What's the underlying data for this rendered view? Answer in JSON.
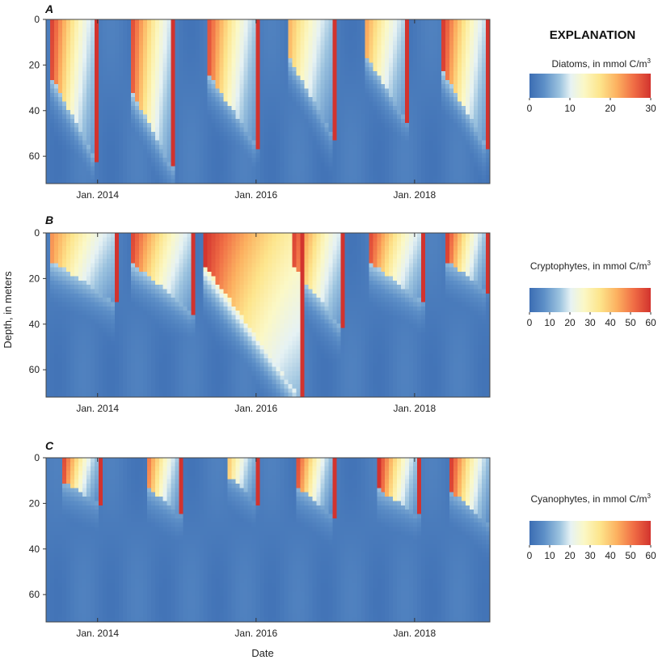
{
  "chart_data": [
    {
      "type": "heatmap",
      "panel": "A",
      "variable": "Diatoms",
      "ylabel": "Depth, in meters",
      "xlabel": "Date",
      "y_ticks": [
        "0",
        "20",
        "40",
        "60"
      ],
      "x_ticks": [
        "Jan. 2014",
        "Jan. 2016",
        "Jan. 2018"
      ],
      "x_range": [
        2013.35,
        2018.95
      ],
      "y_range": [
        0,
        72
      ],
      "colorbar": {
        "title_main": "Diatoms, in mmol C/m",
        "title_sup": "3",
        "ticks": [
          "0",
          "10",
          "20",
          "30"
        ],
        "range": [
          0,
          30
        ]
      },
      "blooms": [
        {
          "start": 2013.4,
          "peak_value": 30,
          "surface_depth": 24,
          "ext_depth": 60,
          "duration": 0.55,
          "tail_value": 9
        },
        {
          "start": 2014.4,
          "peak_value": 30,
          "surface_depth": 30,
          "ext_depth": 65,
          "duration": 0.55,
          "tail_value": 9
        },
        {
          "start": 2015.4,
          "peak_value": 28,
          "surface_depth": 24,
          "ext_depth": 55,
          "duration": 0.6,
          "tail_value": 8
        },
        {
          "start": 2016.4,
          "peak_value": 22,
          "surface_depth": 16,
          "ext_depth": 50,
          "duration": 0.55,
          "tail_value": 8
        },
        {
          "start": 2017.35,
          "peak_value": 24,
          "surface_depth": 14,
          "ext_depth": 45,
          "duration": 0.55,
          "tail_value": 8
        },
        {
          "start": 2018.35,
          "peak_value": 30,
          "surface_depth": 22,
          "ext_depth": 55,
          "duration": 0.55,
          "tail_value": 9
        }
      ]
    },
    {
      "type": "heatmap",
      "panel": "B",
      "variable": "Cryptophytes",
      "ylabel": "Depth, in meters",
      "xlabel": "Date",
      "y_ticks": [
        "0",
        "20",
        "40",
        "60"
      ],
      "x_ticks": [
        "Jan. 2014",
        "Jan. 2016",
        "Jan. 2018"
      ],
      "x_range": [
        2013.35,
        2018.95
      ],
      "y_range": [
        0,
        72
      ],
      "colorbar": {
        "title_main": "Cryptophytes, in mmol C/m",
        "title_sup": "3",
        "ticks": [
          "0",
          "10",
          "20",
          "30",
          "40",
          "50",
          "60"
        ],
        "range": [
          0,
          60
        ]
      },
      "blooms": [
        {
          "start": 2013.4,
          "peak_value": 48,
          "surface_depth": 12,
          "ext_depth": 30,
          "duration": 0.8,
          "tail_value": 18
        },
        {
          "start": 2014.4,
          "peak_value": 60,
          "surface_depth": 12,
          "ext_depth": 35,
          "duration": 0.8,
          "tail_value": 18
        },
        {
          "start": 2015.35,
          "peak_value": 60,
          "surface_depth": 14,
          "ext_depth": 72,
          "duration": 1.2,
          "tail_value": 30
        },
        {
          "start": 2016.45,
          "peak_value": 60,
          "surface_depth": 14,
          "ext_depth": 40,
          "duration": 0.6,
          "tail_value": 20
        },
        {
          "start": 2017.4,
          "peak_value": 60,
          "surface_depth": 12,
          "ext_depth": 30,
          "duration": 0.7,
          "tail_value": 18
        },
        {
          "start": 2018.4,
          "peak_value": 60,
          "surface_depth": 12,
          "ext_depth": 25,
          "duration": 0.5,
          "tail_value": 15
        }
      ]
    },
    {
      "type": "heatmap",
      "panel": "C",
      "variable": "Cyanophytes",
      "ylabel": "Depth, in meters",
      "xlabel": "Date",
      "y_ticks": [
        "0",
        "20",
        "40",
        "60"
      ],
      "x_ticks": [
        "Jan. 2014",
        "Jan. 2016",
        "Jan. 2018"
      ],
      "x_range": [
        2013.35,
        2018.95
      ],
      "y_range": [
        0,
        72
      ],
      "colorbar": {
        "title_main": "Cyanophytes, in mmol C/m",
        "title_sup": "3",
        "ticks": [
          "0",
          "10",
          "20",
          "30",
          "40",
          "50",
          "60"
        ],
        "range": [
          0,
          60
        ]
      },
      "blooms": [
        {
          "start": 2013.55,
          "peak_value": 60,
          "surface_depth": 10,
          "ext_depth": 20,
          "duration": 0.45,
          "tail_value": 14
        },
        {
          "start": 2014.6,
          "peak_value": 55,
          "surface_depth": 12,
          "ext_depth": 25,
          "duration": 0.45,
          "tail_value": 14
        },
        {
          "start": 2015.65,
          "peak_value": 40,
          "surface_depth": 8,
          "ext_depth": 20,
          "duration": 0.35,
          "tail_value": 12
        },
        {
          "start": 2016.5,
          "peak_value": 60,
          "surface_depth": 12,
          "ext_depth": 25,
          "duration": 0.45,
          "tail_value": 14
        },
        {
          "start": 2017.55,
          "peak_value": 60,
          "surface_depth": 14,
          "ext_depth": 25,
          "duration": 0.5,
          "tail_value": 14
        },
        {
          "start": 2018.45,
          "peak_value": 60,
          "surface_depth": 14,
          "ext_depth": 30,
          "duration": 0.5,
          "tail_value": 14
        }
      ]
    }
  ],
  "legend": {
    "title": "EXPLANATION"
  },
  "labels": {
    "panel_a": "A",
    "panel_b": "B",
    "panel_c": "C",
    "ylabel": "Depth, in meters",
    "xlabel": "Date"
  }
}
